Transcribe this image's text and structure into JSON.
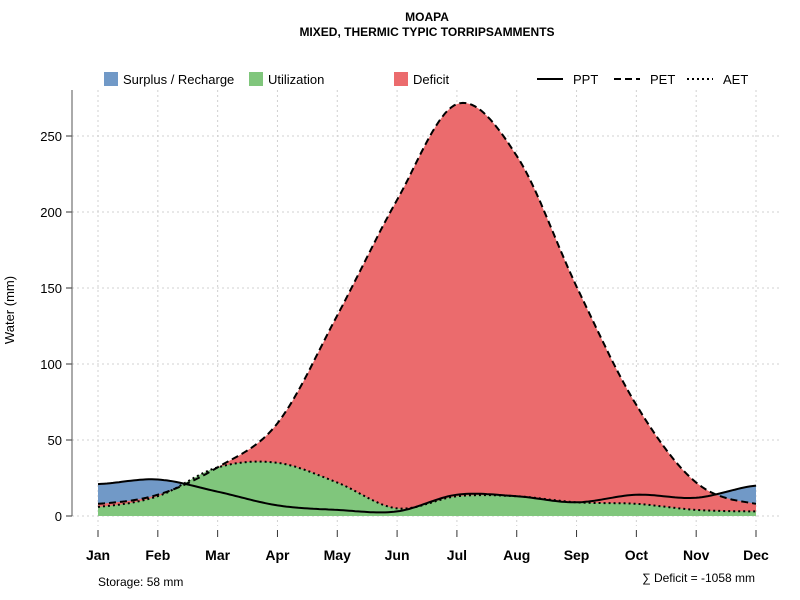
{
  "chart_data": {
    "type": "area",
    "title": "MOAPA",
    "subtitle": "MIXED, THERMIC TYPIC TORRIPSAMMENTS",
    "xlabel": "",
    "ylabel": "Water (mm)",
    "ylim": [
      0,
      280
    ],
    "yticks": [
      0,
      50,
      100,
      150,
      200,
      250
    ],
    "grid": true,
    "categories": [
      "Jan",
      "Feb",
      "Mar",
      "Apr",
      "May",
      "Jun",
      "Jul",
      "Aug",
      "Sep",
      "Oct",
      "Nov",
      "Dec"
    ],
    "series": [
      {
        "name": "PPT",
        "style": "solid",
        "values": [
          21,
          24,
          16,
          7,
          4,
          3,
          14,
          13,
          9,
          14,
          12,
          20
        ]
      },
      {
        "name": "PET",
        "style": "dashed",
        "values": [
          8,
          14,
          32,
          61,
          132,
          208,
          271,
          237,
          151,
          73,
          22,
          8
        ]
      },
      {
        "name": "AET",
        "style": "dotted",
        "values": [
          6,
          13,
          32,
          35,
          22,
          5,
          13,
          13,
          9,
          8,
          4,
          3
        ]
      }
    ],
    "legend": {
      "placement": "top",
      "areas": [
        {
          "label": "Surplus / Recharge",
          "color": "#7199c7"
        },
        {
          "label": "Utilization",
          "color": "#80c67c"
        },
        {
          "label": "Deficit",
          "color": "#eb6b6d"
        }
      ],
      "lines": [
        {
          "label": "PPT",
          "style": "solid"
        },
        {
          "label": "PET",
          "style": "dashed"
        },
        {
          "label": "AET",
          "style": "dotted"
        }
      ]
    },
    "annotations": {
      "storage": "Storage: 58 mm",
      "deficit": "∑ Deficit = -1058 mm"
    }
  }
}
